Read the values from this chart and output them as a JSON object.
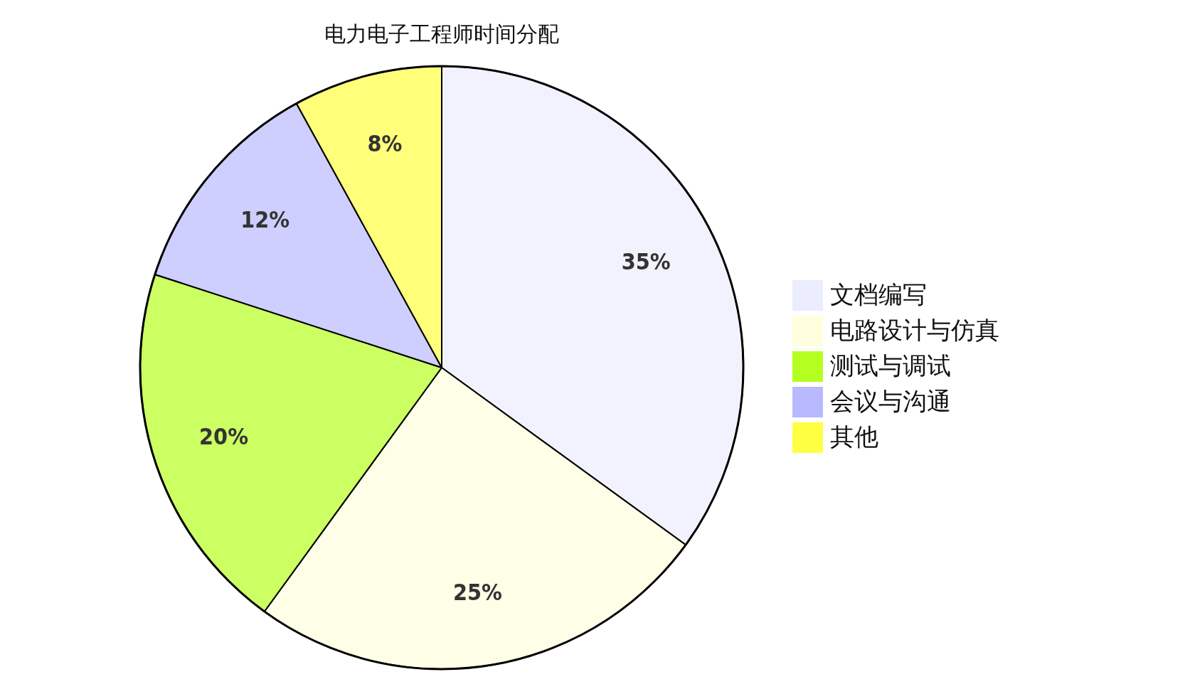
{
  "chart_data": {
    "type": "pie",
    "title": "电力电子工程师时间分配",
    "categories": [
      "文档编写",
      "电路设计与仿真",
      "测试与调试",
      "会议与沟通",
      "其他"
    ],
    "values": [
      35,
      25,
      20,
      12,
      8
    ],
    "value_labels": [
      "35%",
      "25%",
      "20%",
      "12%",
      "8%"
    ],
    "colors": [
      "#ececff",
      "#ffffde",
      "#b5ff20",
      "#b9b9ff",
      "#ffff42"
    ],
    "legend": "right"
  }
}
